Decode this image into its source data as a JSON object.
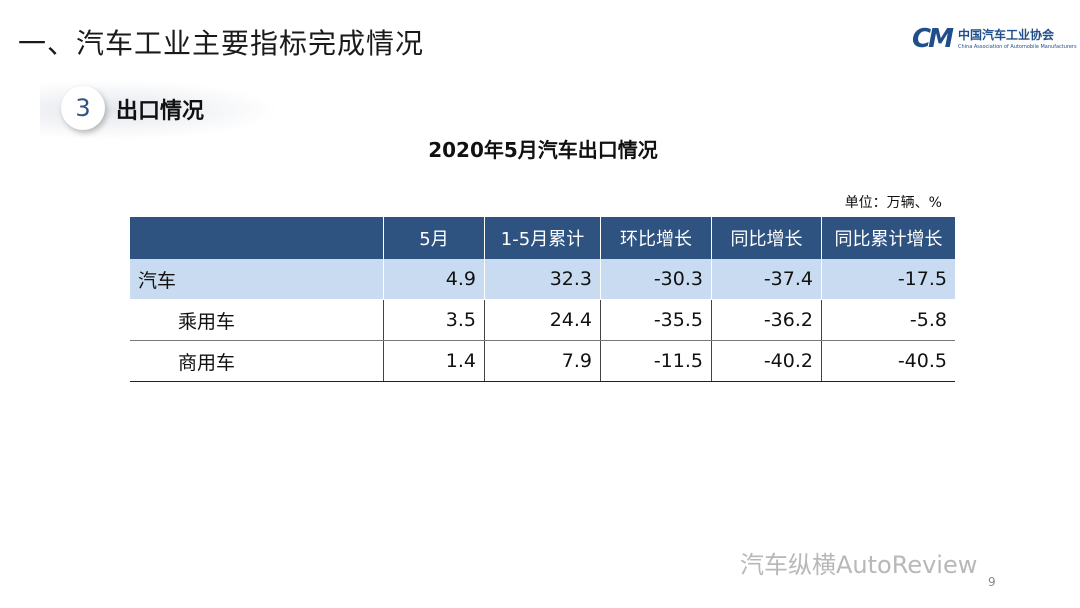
{
  "header": {
    "title": "一、汽车工业主要指标完成情况"
  },
  "logo": {
    "mark": "CM",
    "name": "中国汽车工业协会",
    "subtitle": "China Association of Automobile Manufacturers"
  },
  "section": {
    "number": "3",
    "title": "出口情况"
  },
  "table": {
    "title": "2020年5月汽车出口情况",
    "unit": "单位：万辆、%",
    "columns": [
      "5月",
      "1-5月累计",
      "环比增长",
      "同比增长",
      "同比累计增长"
    ],
    "rows": [
      {
        "label": "汽车",
        "values": [
          4.9,
          32.3,
          -30.3,
          -37.4,
          -17.5
        ]
      },
      {
        "label": "乘用车",
        "values": [
          3.5,
          24.4,
          -35.5,
          -36.2,
          -5.8
        ]
      },
      {
        "label": "商用车",
        "values": [
          1.4,
          7.9,
          -11.5,
          -40.2,
          -40.5
        ]
      }
    ]
  },
  "footer": {
    "watermark": "汽车纵横AutoReview",
    "page": "9"
  }
}
